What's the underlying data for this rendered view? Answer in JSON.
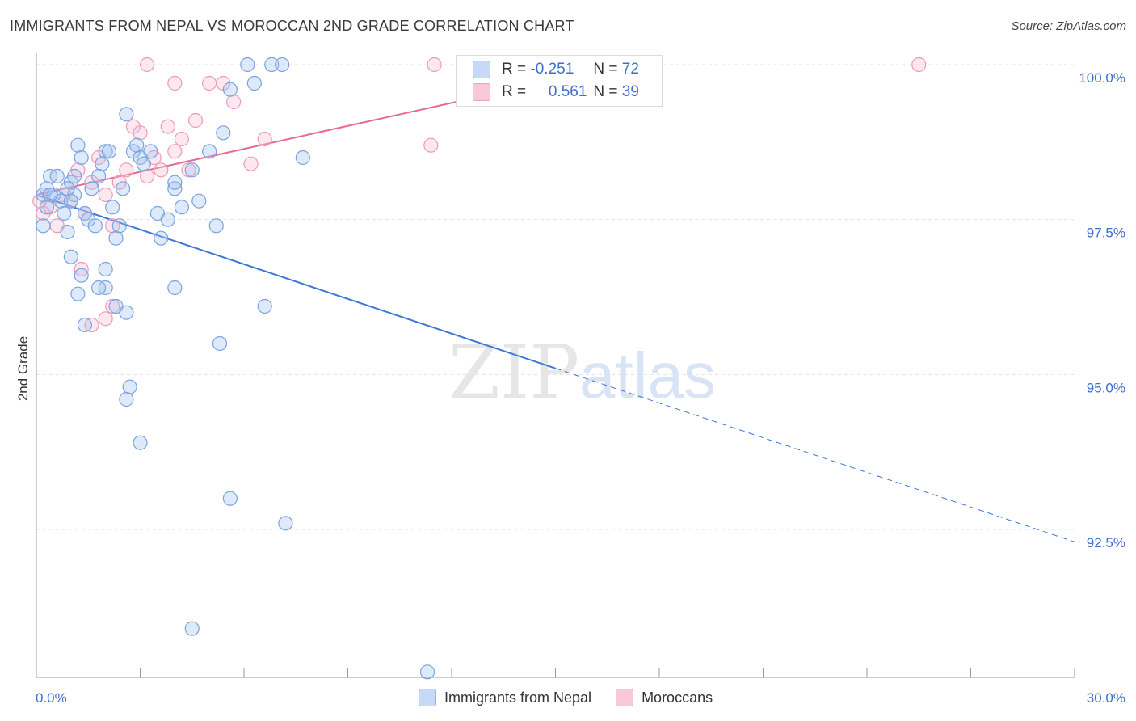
{
  "title": "IMMIGRANTS FROM NEPAL VS MOROCCAN 2ND GRADE CORRELATION CHART",
  "source": "Source: ZipAtlas.com",
  "watermark": {
    "part1": "ZIP",
    "part2": "atlas"
  },
  "stats": [
    {
      "r_label": "R =",
      "r_value": "-0.251",
      "n_label": "N =",
      "n_value": "72",
      "color": "#8fb3ea",
      "fill": "#c6d9f7"
    },
    {
      "r_label": "R =",
      "r_value": "0.561",
      "n_label": "N =",
      "n_value": "39",
      "color": "#f0a0ba",
      "fill": "#f9c8d8"
    }
  ],
  "legend": [
    {
      "label": "Immigrants from Nepal",
      "color": "#8fb3ea",
      "fill": "#c6d9f7"
    },
    {
      "label": "Moroccans",
      "color": "#f0a0ba",
      "fill": "#f9c8d8"
    }
  ],
  "chart_data": {
    "type": "scatter",
    "title": "IMMIGRANTS FROM NEPAL VS MOROCCAN 2ND GRADE CORRELATION CHART",
    "xlabel": "",
    "ylabel": "2nd Grade",
    "xlim": [
      0,
      30
    ],
    "ylim": [
      90.0,
      100.2
    ],
    "x_tick_labels": [
      "0.0%",
      "30.0%"
    ],
    "y_ticks": [
      92.5,
      95.0,
      97.5,
      100.0
    ],
    "y_tick_labels": [
      "92.5%",
      "95.0%",
      "97.5%",
      "100.0%"
    ],
    "grid": true,
    "series": [
      {
        "name": "Immigrants from Nepal",
        "color": "#3b78d8",
        "points": [
          [
            0.2,
            97.9
          ],
          [
            0.3,
            98.0
          ],
          [
            0.3,
            97.7
          ],
          [
            0.2,
            97.4
          ],
          [
            0.4,
            98.2
          ],
          [
            0.5,
            97.9
          ],
          [
            0.6,
            98.2
          ],
          [
            0.7,
            97.8
          ],
          [
            0.8,
            97.6
          ],
          [
            0.9,
            97.3
          ],
          [
            1.0,
            98.1
          ],
          [
            1.1,
            97.9
          ],
          [
            0.9,
            98.0
          ],
          [
            1.2,
            98.7
          ],
          [
            1.3,
            98.5
          ],
          [
            1.1,
            98.2
          ],
          [
            1.0,
            97.8
          ],
          [
            1.4,
            97.6
          ],
          [
            1.5,
            97.5
          ],
          [
            1.6,
            98.0
          ],
          [
            1.7,
            97.4
          ],
          [
            1.8,
            98.2
          ],
          [
            1.9,
            98.4
          ],
          [
            2.0,
            98.6
          ],
          [
            2.1,
            98.6
          ],
          [
            2.2,
            97.7
          ],
          [
            2.3,
            97.2
          ],
          [
            2.4,
            97.4
          ],
          [
            2.5,
            98.0
          ],
          [
            2.6,
            99.2
          ],
          [
            2.8,
            98.6
          ],
          [
            2.9,
            98.7
          ],
          [
            3.0,
            98.5
          ],
          [
            3.1,
            98.4
          ],
          [
            3.3,
            98.6
          ],
          [
            3.5,
            97.6
          ],
          [
            3.6,
            97.2
          ],
          [
            3.8,
            97.5
          ],
          [
            4.0,
            98.0
          ],
          [
            4.2,
            97.7
          ],
          [
            4.0,
            98.1
          ],
          [
            4.5,
            98.3
          ],
          [
            4.7,
            97.8
          ],
          [
            5.0,
            98.6
          ],
          [
            5.2,
            97.4
          ],
          [
            5.4,
            98.9
          ],
          [
            5.6,
            99.6
          ],
          [
            6.1,
            100.0
          ],
          [
            6.3,
            99.7
          ],
          [
            6.8,
            100.0
          ],
          [
            7.1,
            100.0
          ],
          [
            7.7,
            98.5
          ],
          [
            1.0,
            96.9
          ],
          [
            1.3,
            96.6
          ],
          [
            2.0,
            96.4
          ],
          [
            1.2,
            96.3
          ],
          [
            2.0,
            96.7
          ],
          [
            2.3,
            96.1
          ],
          [
            2.6,
            96.0
          ],
          [
            1.4,
            95.8
          ],
          [
            1.8,
            96.4
          ],
          [
            4.0,
            96.4
          ],
          [
            6.6,
            96.1
          ],
          [
            5.3,
            95.5
          ],
          [
            2.7,
            94.8
          ],
          [
            2.6,
            94.6
          ],
          [
            3.0,
            93.9
          ],
          [
            5.6,
            93.0
          ],
          [
            7.2,
            92.6
          ],
          [
            4.5,
            90.9
          ],
          [
            11.3,
            90.2
          ],
          [
            0.4,
            97.9
          ]
        ]
      },
      {
        "name": "Moroccans",
        "color": "#e86a92",
        "points": [
          [
            0.1,
            97.8
          ],
          [
            0.2,
            97.6
          ],
          [
            0.4,
            97.7
          ],
          [
            0.6,
            97.4
          ],
          [
            0.8,
            97.9
          ],
          [
            1.0,
            97.8
          ],
          [
            1.2,
            98.3
          ],
          [
            1.4,
            97.6
          ],
          [
            1.6,
            98.1
          ],
          [
            1.8,
            98.5
          ],
          [
            2.0,
            97.9
          ],
          [
            2.2,
            97.4
          ],
          [
            2.4,
            98.1
          ],
          [
            2.6,
            98.3
          ],
          [
            2.8,
            99.0
          ],
          [
            3.0,
            98.9
          ],
          [
            3.2,
            98.2
          ],
          [
            3.4,
            98.5
          ],
          [
            3.6,
            98.3
          ],
          [
            3.8,
            99.0
          ],
          [
            4.0,
            98.6
          ],
          [
            4.2,
            98.8
          ],
          [
            4.4,
            98.3
          ],
          [
            4.6,
            99.1
          ],
          [
            5.0,
            99.7
          ],
          [
            5.4,
            99.7
          ],
          [
            5.7,
            99.4
          ],
          [
            6.2,
            98.4
          ],
          [
            6.6,
            98.8
          ],
          [
            3.2,
            100.0
          ],
          [
            4.0,
            99.7
          ],
          [
            11.5,
            100.0
          ],
          [
            15.2,
            100.0
          ],
          [
            25.5,
            100.0
          ],
          [
            11.4,
            98.7
          ],
          [
            1.3,
            96.7
          ],
          [
            1.6,
            95.8
          ],
          [
            2.2,
            96.1
          ],
          [
            2.0,
            95.9
          ]
        ]
      }
    ],
    "trendlines": [
      {
        "series": "Immigrants from Nepal",
        "x0": 0.0,
        "y0": 97.9,
        "x1": 30.0,
        "y1": 92.3,
        "solid_until_x": 15.0
      },
      {
        "series": "Moroccans",
        "x0": 0.0,
        "y0": 97.9,
        "x1": 17.0,
        "y1": 100.0
      }
    ]
  }
}
